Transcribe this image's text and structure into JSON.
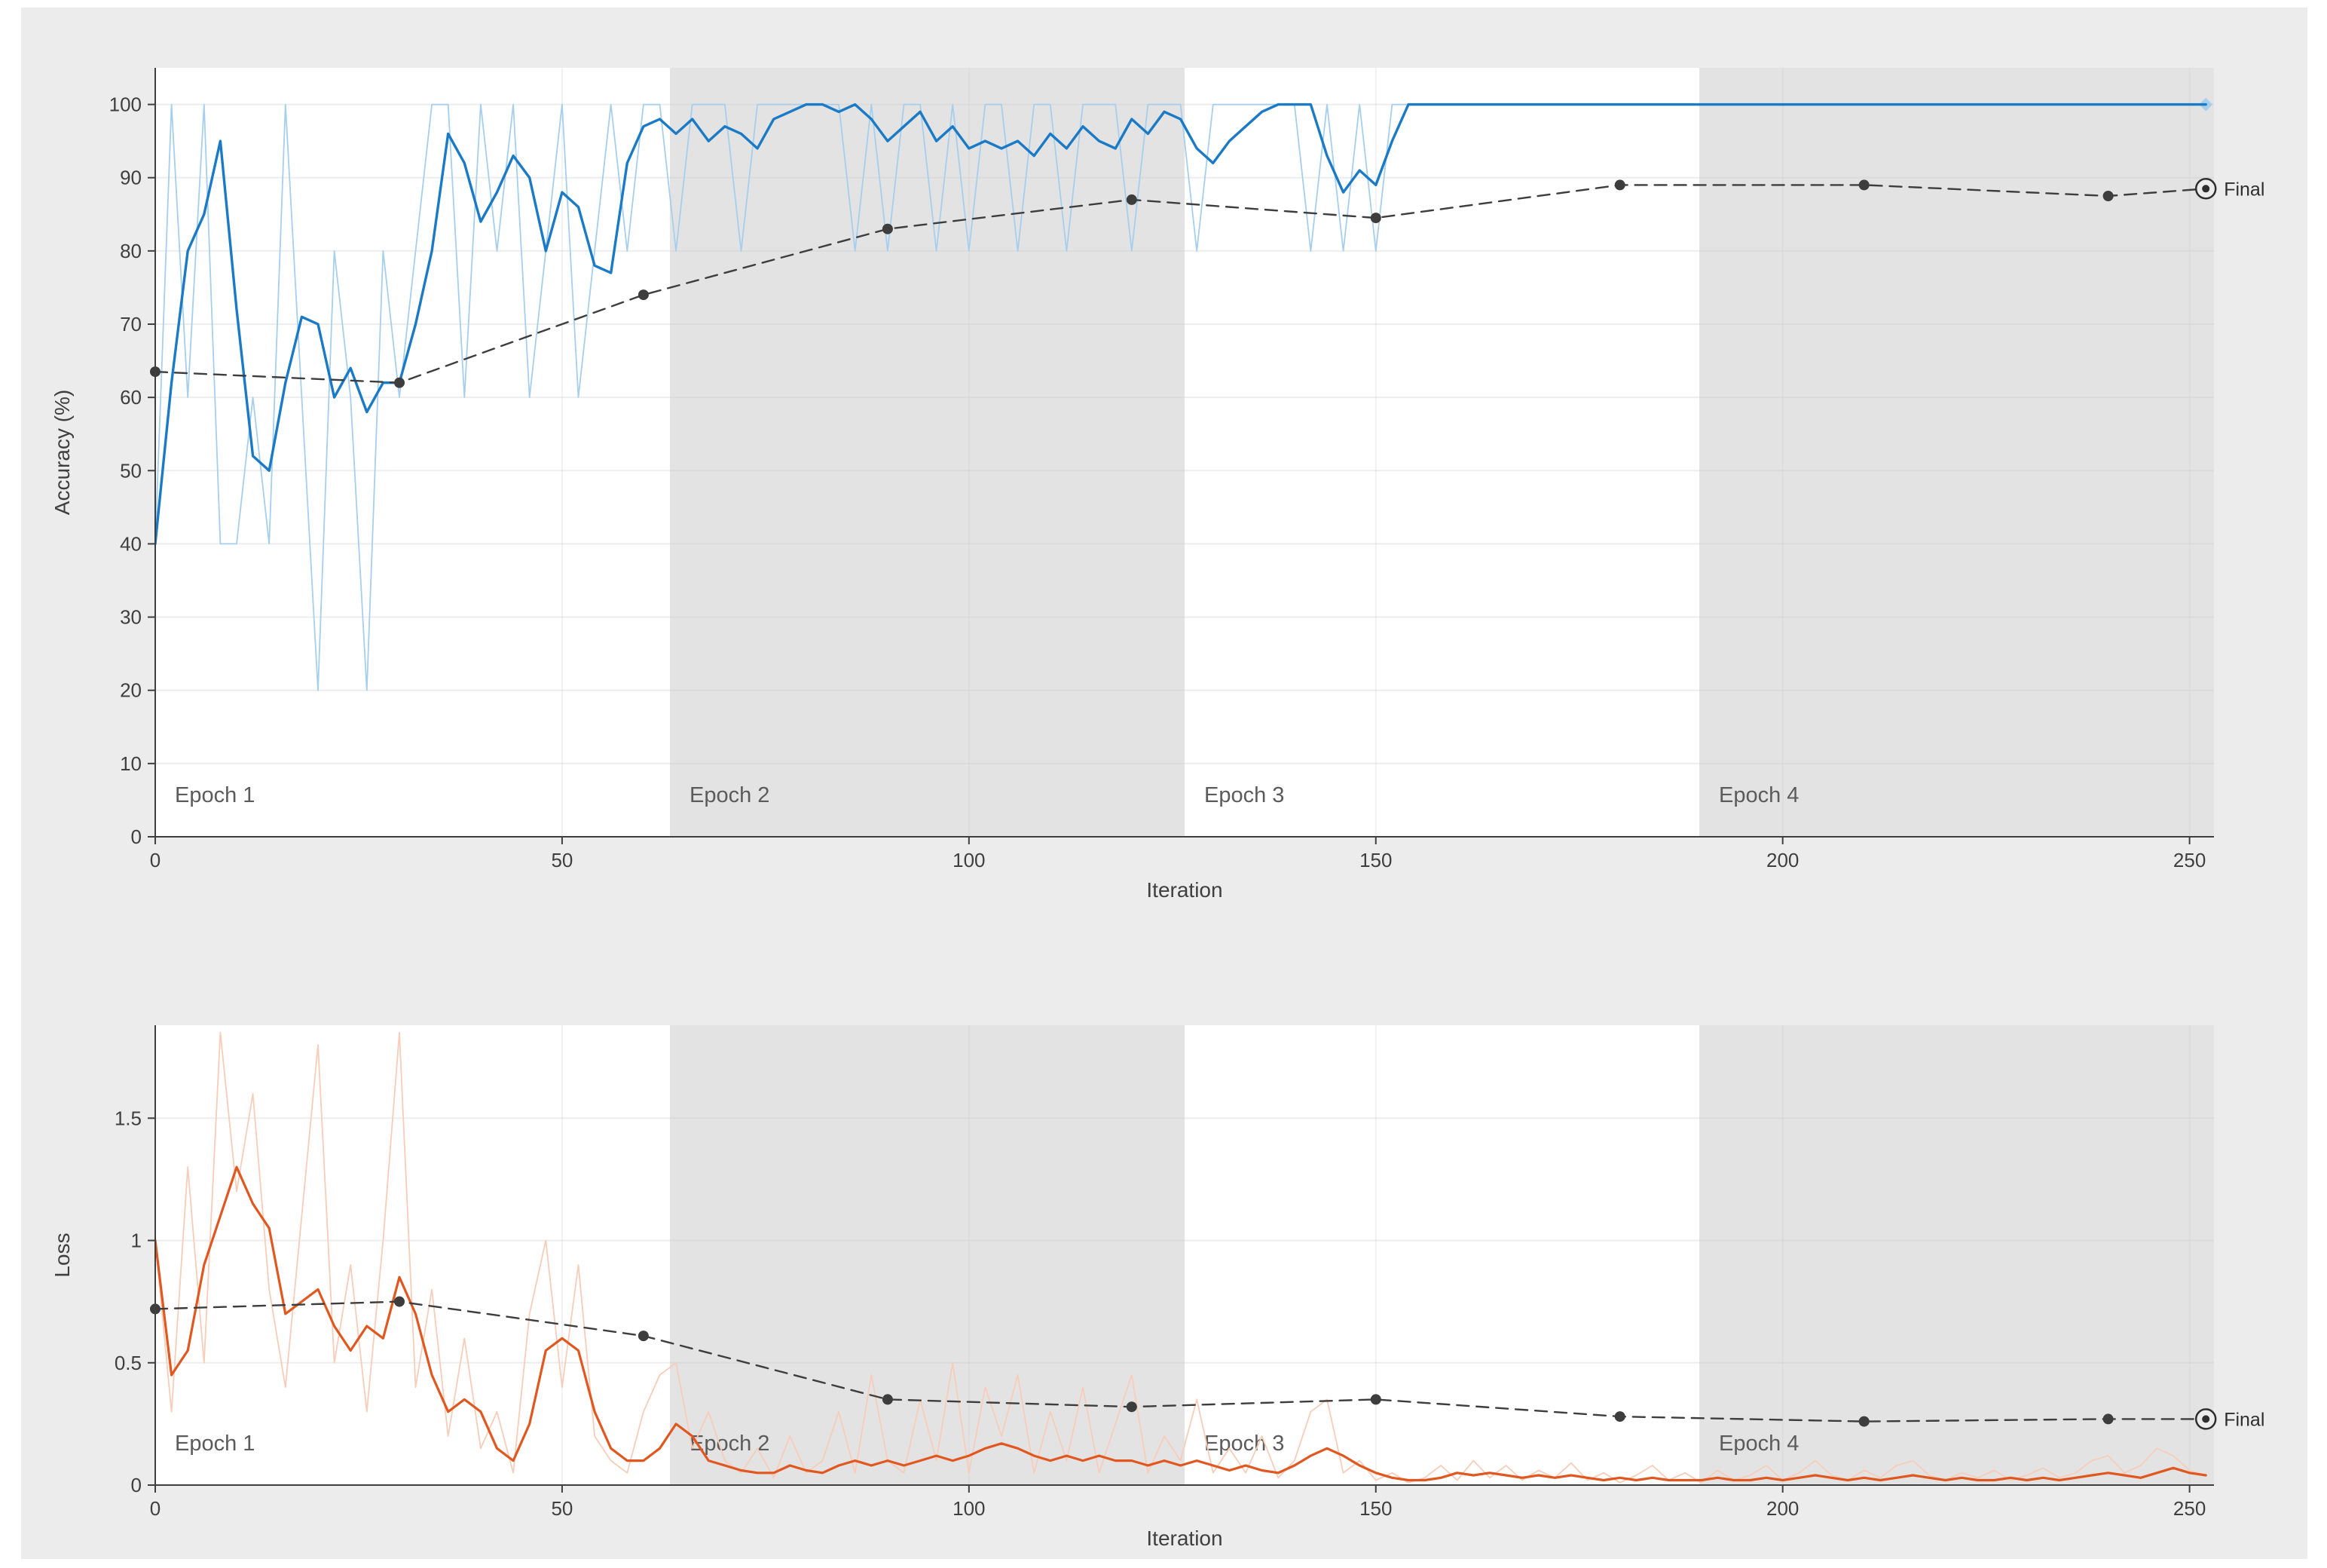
{
  "figure": {
    "background_color": "#ececec",
    "band_color": "#e3e3e3",
    "plot_bg_color": "#ffffff",
    "grid_color": "#cccccc",
    "spine_color": "#3f3f3f",
    "final_label": "Final"
  },
  "chart_data": [
    {
      "name": "accuracy",
      "type": "line",
      "title": "",
      "xlabel": "Iteration",
      "ylabel": "Accuracy (%)",
      "xlim": [
        0,
        253
      ],
      "ylim": [
        0,
        105
      ],
      "xticks": [
        0,
        50,
        100,
        150,
        200,
        250
      ],
      "yticks": [
        0,
        10,
        20,
        30,
        40,
        50,
        60,
        70,
        80,
        90,
        100
      ],
      "grid": true,
      "legend_position": "none",
      "epoch_bands": [
        {
          "label": "Epoch 1",
          "start": 0,
          "end": 63.25,
          "shaded": false
        },
        {
          "label": "Epoch 2",
          "start": 63.25,
          "end": 126.5,
          "shaded": true
        },
        {
          "label": "Epoch 3",
          "start": 126.5,
          "end": 189.75,
          "shaded": false
        },
        {
          "label": "Epoch 4",
          "start": 189.75,
          "end": 253,
          "shaded": true
        }
      ],
      "series": [
        {
          "name": "training-accuracy-raw",
          "color": "#a6cfee",
          "width": 1.8,
          "x_start": 0,
          "x_step": 2,
          "end_marker": true,
          "values": [
            40,
            100,
            60,
            100,
            40,
            40,
            60,
            40,
            100,
            60,
            20,
            80,
            60,
            20,
            80,
            60,
            80,
            100,
            100,
            60,
            100,
            80,
            100,
            60,
            80,
            100,
            60,
            80,
            100,
            80,
            100,
            100,
            80,
            100,
            100,
            100,
            80,
            100,
            100,
            100,
            100,
            100,
            100,
            80,
            100,
            80,
            100,
            100,
            80,
            100,
            80,
            100,
            100,
            80,
            100,
            100,
            80,
            100,
            100,
            100,
            80,
            100,
            100,
            100,
            80,
            100,
            100,
            100,
            100,
            100,
            100,
            80,
            100,
            80,
            100,
            80,
            100,
            100,
            100,
            100,
            100,
            100,
            100,
            100,
            100,
            100,
            100,
            100,
            100,
            100,
            100,
            100,
            100,
            100,
            100,
            100,
            100,
            100,
            100,
            100,
            100,
            100,
            100,
            100,
            100,
            100,
            100,
            100,
            100,
            100,
            100,
            100,
            100,
            100,
            100,
            100,
            100,
            100,
            100,
            100,
            100,
            100,
            100,
            100,
            100,
            100,
            100
          ]
        },
        {
          "name": "training-accuracy-smoothed",
          "color": "#1b7ac6",
          "width": 3.4,
          "x_start": 0,
          "x_step": 2,
          "values": [
            40,
            62,
            80,
            85,
            95,
            72,
            52,
            50,
            62,
            71,
            70,
            60,
            64,
            58,
            62,
            62,
            70,
            80,
            96,
            92,
            84,
            88,
            93,
            90,
            80,
            88,
            86,
            78,
            77,
            92,
            97,
            98,
            96,
            98,
            95,
            97,
            96,
            94,
            98,
            99,
            100,
            100,
            99,
            100,
            98,
            95,
            97,
            99,
            95,
            97,
            94,
            95,
            94,
            95,
            93,
            96,
            94,
            97,
            95,
            94,
            98,
            96,
            99,
            98,
            94,
            92,
            95,
            97,
            99,
            100,
            100,
            100,
            93,
            88,
            91,
            89,
            95,
            100,
            100,
            100,
            100,
            100,
            100,
            100,
            100,
            100,
            100,
            100,
            100,
            100,
            100,
            100,
            100,
            100,
            100,
            100,
            100,
            100,
            100,
            100,
            100,
            100,
            100,
            100,
            100,
            100,
            100,
            100,
            100,
            100,
            100,
            100,
            100,
            100,
            100,
            100,
            100,
            100,
            100,
            100,
            100,
            100,
            100,
            100,
            100,
            100,
            100
          ]
        },
        {
          "name": "validation-accuracy",
          "color": "#3d3d3d",
          "width": 2.4,
          "dashed": true,
          "markers": true,
          "x": [
            0,
            30,
            60,
            90,
            120,
            150,
            180,
            210,
            240,
            252
          ],
          "y": [
            63.5,
            62,
            74,
            83,
            87,
            84.5,
            89,
            89,
            87.5,
            88.5
          ]
        }
      ],
      "final": {
        "x": 252,
        "y": 88.5,
        "label": "Final"
      }
    },
    {
      "name": "loss",
      "type": "line",
      "title": "",
      "xlabel": "Iteration",
      "ylabel": "Loss",
      "xlim": [
        0,
        253
      ],
      "ylim": [
        0,
        1.88
      ],
      "xticks": [
        0,
        50,
        100,
        150,
        200,
        250
      ],
      "yticks": [
        0,
        0.5,
        1,
        1.5
      ],
      "grid": true,
      "legend_position": "none",
      "epoch_bands": [
        {
          "label": "Epoch 1",
          "start": 0,
          "end": 63.25,
          "shaded": false
        },
        {
          "label": "Epoch 2",
          "start": 63.25,
          "end": 126.5,
          "shaded": true
        },
        {
          "label": "Epoch 3",
          "start": 126.5,
          "end": 189.75,
          "shaded": false
        },
        {
          "label": "Epoch 4",
          "start": 189.75,
          "end": 253,
          "shaded": true
        }
      ],
      "series": [
        {
          "name": "training-loss-raw",
          "color": "#f7cdb9",
          "width": 1.8,
          "x_start": 0,
          "x_step": 2,
          "values": [
            1.0,
            0.3,
            1.3,
            0.5,
            1.85,
            1.2,
            1.6,
            0.8,
            0.4,
            1.1,
            1.8,
            0.5,
            0.9,
            0.3,
            1.0,
            1.85,
            0.4,
            0.8,
            0.2,
            0.6,
            0.15,
            0.3,
            0.05,
            0.7,
            1.0,
            0.4,
            0.9,
            0.2,
            0.1,
            0.05,
            0.3,
            0.45,
            0.5,
            0.15,
            0.3,
            0.1,
            0.05,
            0.15,
            0.03,
            0.2,
            0.05,
            0.1,
            0.3,
            0.05,
            0.45,
            0.1,
            0.05,
            0.35,
            0.1,
            0.5,
            0.05,
            0.4,
            0.2,
            0.45,
            0.05,
            0.3,
            0.1,
            0.4,
            0.05,
            0.25,
            0.45,
            0.05,
            0.2,
            0.1,
            0.35,
            0.05,
            0.15,
            0.05,
            0.2,
            0.03,
            0.1,
            0.3,
            0.35,
            0.05,
            0.1,
            0.02,
            0.05,
            0.01,
            0.03,
            0.08,
            0.02,
            0.1,
            0.03,
            0.08,
            0.02,
            0.06,
            0.03,
            0.09,
            0.02,
            0.05,
            0.01,
            0.04,
            0.08,
            0.02,
            0.05,
            0.01,
            0.06,
            0.02,
            0.04,
            0.08,
            0.02,
            0.05,
            0.1,
            0.04,
            0.02,
            0.06,
            0.03,
            0.08,
            0.1,
            0.04,
            0.02,
            0.05,
            0.03,
            0.06,
            0.02,
            0.04,
            0.07,
            0.03,
            0.05,
            0.1,
            0.12,
            0.05,
            0.08,
            0.15,
            0.12,
            0.06,
            0.04
          ]
        },
        {
          "name": "training-loss-smoothed",
          "color": "#e0571f",
          "width": 3.2,
          "x_start": 0,
          "x_step": 2,
          "values": [
            1.0,
            0.45,
            0.55,
            0.9,
            1.1,
            1.3,
            1.15,
            1.05,
            0.7,
            0.75,
            0.8,
            0.65,
            0.55,
            0.65,
            0.6,
            0.85,
            0.7,
            0.45,
            0.3,
            0.35,
            0.3,
            0.15,
            0.1,
            0.25,
            0.55,
            0.6,
            0.55,
            0.3,
            0.15,
            0.1,
            0.1,
            0.15,
            0.25,
            0.2,
            0.1,
            0.08,
            0.06,
            0.05,
            0.05,
            0.08,
            0.06,
            0.05,
            0.08,
            0.1,
            0.08,
            0.1,
            0.08,
            0.1,
            0.12,
            0.1,
            0.12,
            0.15,
            0.17,
            0.15,
            0.12,
            0.1,
            0.12,
            0.1,
            0.12,
            0.1,
            0.1,
            0.08,
            0.1,
            0.08,
            0.1,
            0.08,
            0.06,
            0.08,
            0.06,
            0.05,
            0.08,
            0.12,
            0.15,
            0.12,
            0.08,
            0.05,
            0.03,
            0.02,
            0.02,
            0.03,
            0.05,
            0.04,
            0.05,
            0.04,
            0.03,
            0.04,
            0.03,
            0.04,
            0.03,
            0.02,
            0.03,
            0.02,
            0.03,
            0.02,
            0.02,
            0.02,
            0.03,
            0.02,
            0.02,
            0.03,
            0.02,
            0.03,
            0.04,
            0.03,
            0.02,
            0.03,
            0.02,
            0.03,
            0.04,
            0.03,
            0.02,
            0.03,
            0.02,
            0.02,
            0.03,
            0.02,
            0.03,
            0.02,
            0.03,
            0.04,
            0.05,
            0.04,
            0.03,
            0.05,
            0.07,
            0.05,
            0.04
          ]
        },
        {
          "name": "validation-loss",
          "color": "#3d3d3d",
          "width": 2.4,
          "dashed": true,
          "markers": true,
          "x": [
            0,
            30,
            60,
            90,
            120,
            150,
            180,
            210,
            240,
            252
          ],
          "y": [
            0.72,
            0.75,
            0.61,
            0.35,
            0.32,
            0.35,
            0.28,
            0.26,
            0.27,
            0.27
          ]
        }
      ],
      "final": {
        "x": 252,
        "y": 0.27,
        "label": "Final"
      }
    }
  ]
}
